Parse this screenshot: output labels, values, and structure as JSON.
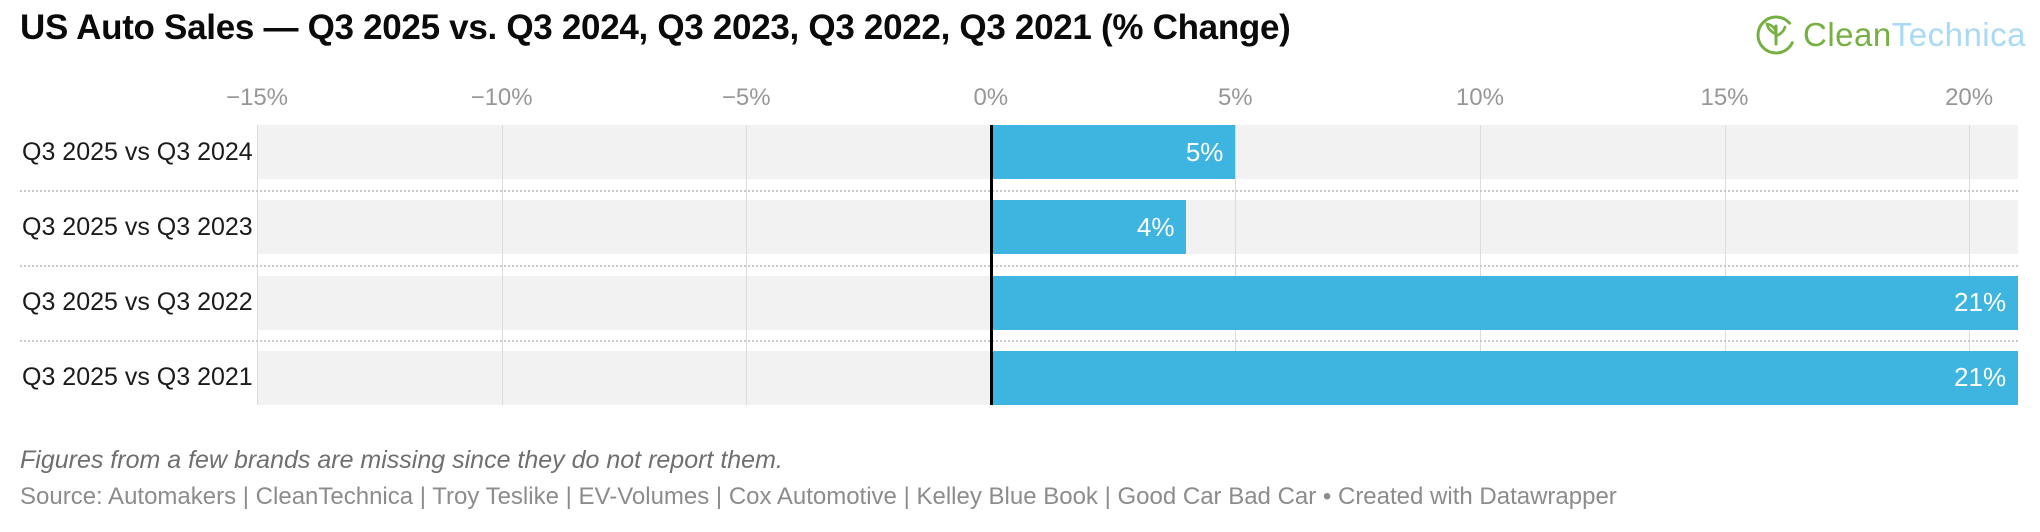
{
  "header": {
    "title": "US Auto Sales — Q3 2025 vs. Q3 2024, Q3 2023, Q3 2022, Q3 2021 (% Change)",
    "logo": {
      "icon": "cleantechnica-circle-leaf-icon",
      "part1": "Clean",
      "part2": "Technica",
      "green": "#76b043",
      "light_blue": "#a8d9f5"
    }
  },
  "chart_data": {
    "type": "bar",
    "orientation": "horizontal",
    "title": "US Auto Sales — Q3 2025 vs. Q3 2024, Q3 2023, Q3 2022, Q3 2021 (% Change)",
    "categories": [
      "Q3 2025 vs Q3 2024",
      "Q3 2025 vs Q3 2023",
      "Q3 2025 vs Q3 2022",
      "Q3 2025 vs Q3 2021"
    ],
    "values": [
      5,
      4,
      21,
      21
    ],
    "value_labels": [
      "5%",
      "4%",
      "21%",
      "21%"
    ],
    "axis": {
      "min": -15,
      "max": 21,
      "ticks": [
        -15,
        -10,
        -5,
        0,
        5,
        10,
        15,
        20
      ],
      "tick_labels": [
        "−15%",
        "−10%",
        "−5%",
        "0%",
        "5%",
        "10%",
        "15%",
        "20%"
      ]
    },
    "bar_color": "#3eb4e0",
    "track_color": "#f2f2f2",
    "grid": true,
    "zero_line": true,
    "legend": "none"
  },
  "footer": {
    "note": "Figures from a few brands are missing since they do not report them.",
    "source": "Source: Automakers | CleanTechnica | Troy Teslike | EV-Volumes | Cox Automotive | Kelley Blue Book | Good Car Bad Car • Created with Datawrapper"
  }
}
